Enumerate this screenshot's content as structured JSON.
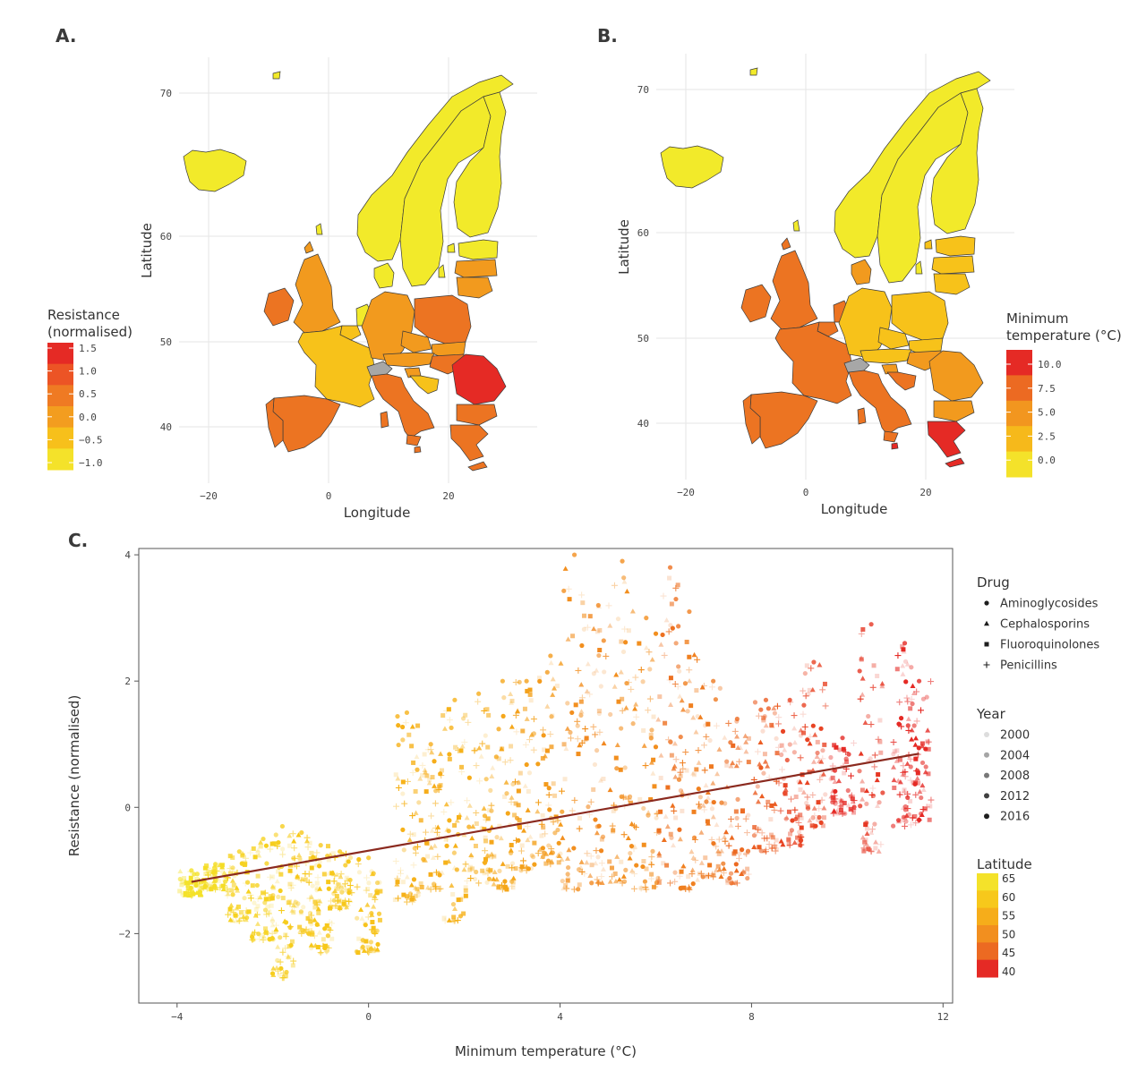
{
  "panel_letters": {
    "a": "A.",
    "b": "B.",
    "c": "C."
  },
  "colors": {
    "yellow": "#f2ea2a",
    "yellow_orange": "#f7c21a",
    "orange": "#f29a1e",
    "dark_orange": "#ec7422",
    "red": "#e52a25",
    "grey": "#a7a7a7",
    "regression_line": "#8b2a1f",
    "grid": "#e6e6e6"
  },
  "chart_data": [
    {
      "type": "heatmap",
      "panel": "A",
      "geography": "Europe choropleth map",
      "xlabel": "Longitude",
      "ylabel": "Latitude",
      "x_ticks": [
        "−20",
        "0",
        "20"
      ],
      "y_ticks": [
        "40",
        "50",
        "60",
        "70"
      ],
      "legend_title": "Resistance (normalised)",
      "legend_title_lines": [
        "Resistance",
        "(normalised)"
      ],
      "legend_ticks": [
        "1.5",
        "1.0",
        "0.5",
        "0.0",
        "−0.5",
        "−1.0"
      ],
      "legend_colors": [
        "#e52a25",
        "#ec5425",
        "#ef7a23",
        "#f39d1f",
        "#f7c01b",
        "#f4e22a"
      ],
      "regions": [
        {
          "region": "Iceland",
          "color": "yellow"
        },
        {
          "region": "Norway",
          "color": "yellow"
        },
        {
          "region": "Sweden",
          "color": "yellow"
        },
        {
          "region": "Finland",
          "color": "yellow"
        },
        {
          "region": "Denmark",
          "color": "yellow"
        },
        {
          "region": "Netherlands",
          "color": "yellow"
        },
        {
          "region": "Estonia",
          "color": "yellow"
        },
        {
          "region": "Latvia",
          "color": "orange"
        },
        {
          "region": "Lithuania",
          "color": "orange"
        },
        {
          "region": "United Kingdom",
          "color": "orange"
        },
        {
          "region": "Ireland",
          "color": "dark_orange"
        },
        {
          "region": "France",
          "color": "yellow_orange"
        },
        {
          "region": "Belgium",
          "color": "yellow_orange"
        },
        {
          "region": "Germany",
          "color": "orange"
        },
        {
          "region": "Poland",
          "color": "dark_orange"
        },
        {
          "region": "Czechia",
          "color": "orange"
        },
        {
          "region": "Slovakia",
          "color": "orange"
        },
        {
          "region": "Austria",
          "color": "orange"
        },
        {
          "region": "Hungary",
          "color": "dark_orange"
        },
        {
          "region": "Slovenia",
          "color": "orange"
        },
        {
          "region": "Croatia",
          "color": "yellow_orange"
        },
        {
          "region": "Switzerland",
          "color": "grey"
        },
        {
          "region": "Italy",
          "color": "dark_orange"
        },
        {
          "region": "Spain",
          "color": "dark_orange"
        },
        {
          "region": "Portugal",
          "color": "dark_orange"
        },
        {
          "region": "Romania",
          "color": "red"
        },
        {
          "region": "Bulgaria",
          "color": "dark_orange"
        },
        {
          "region": "Greece",
          "color": "dark_orange"
        },
        {
          "region": "Cyprus",
          "color": "dark_orange"
        },
        {
          "region": "Malta",
          "color": "dark_orange"
        }
      ]
    },
    {
      "type": "heatmap",
      "panel": "B",
      "geography": "Europe choropleth map",
      "xlabel": "Longitude",
      "ylabel": "Latitude",
      "x_ticks": [
        "−20",
        "0",
        "20"
      ],
      "y_ticks": [
        "40",
        "50",
        "60",
        "70"
      ],
      "legend_title": "Minimum temperature (°C)",
      "legend_title_lines": [
        "Minimum",
        "temperature (°C)"
      ],
      "legend_ticks": [
        "10.0",
        "7.5",
        "5.0",
        "2.5",
        "0.0"
      ],
      "legend_colors": [
        "#e52a25",
        "#ec6a22",
        "#f2961f",
        "#f6b91b",
        "#f4e22a"
      ],
      "regions": [
        {
          "region": "Iceland",
          "color": "yellow"
        },
        {
          "region": "Norway",
          "color": "yellow"
        },
        {
          "region": "Sweden",
          "color": "yellow"
        },
        {
          "region": "Finland",
          "color": "yellow"
        },
        {
          "region": "Estonia",
          "color": "yellow_orange"
        },
        {
          "region": "Latvia",
          "color": "yellow_orange"
        },
        {
          "region": "Lithuania",
          "color": "yellow_orange"
        },
        {
          "region": "Denmark",
          "color": "orange"
        },
        {
          "region": "Netherlands",
          "color": "dark_orange"
        },
        {
          "region": "Belgium",
          "color": "dark_orange"
        },
        {
          "region": "United Kingdom",
          "color": "dark_orange"
        },
        {
          "region": "Ireland",
          "color": "dark_orange"
        },
        {
          "region": "France",
          "color": "dark_orange"
        },
        {
          "region": "Germany",
          "color": "yellow_orange"
        },
        {
          "region": "Poland",
          "color": "yellow_orange"
        },
        {
          "region": "Czechia",
          "color": "yellow_orange"
        },
        {
          "region": "Slovakia",
          "color": "yellow_orange"
        },
        {
          "region": "Austria",
          "color": "yellow_orange"
        },
        {
          "region": "Hungary",
          "color": "orange"
        },
        {
          "region": "Romania",
          "color": "orange"
        },
        {
          "region": "Bulgaria",
          "color": "orange"
        },
        {
          "region": "Slovenia",
          "color": "orange"
        },
        {
          "region": "Croatia",
          "color": "dark_orange"
        },
        {
          "region": "Switzerland",
          "color": "grey"
        },
        {
          "region": "Italy",
          "color": "dark_orange"
        },
        {
          "region": "Spain",
          "color": "dark_orange"
        },
        {
          "region": "Portugal",
          "color": "dark_orange"
        },
        {
          "region": "Greece",
          "color": "red"
        },
        {
          "region": "Cyprus",
          "color": "red"
        },
        {
          "region": "Malta",
          "color": "red"
        }
      ]
    },
    {
      "type": "scatter",
      "panel": "C",
      "xlabel": "Minimum temperature (°C)",
      "ylabel": "Resistance (normalised)",
      "xlim": [
        -4.8,
        12.2
      ],
      "ylim": [
        -3.1,
        4.1
      ],
      "x_ticks": [
        {
          "value": -4,
          "label": "−4"
        },
        {
          "value": 0,
          "label": "0"
        },
        {
          "value": 4,
          "label": "4"
        },
        {
          "value": 8,
          "label": "8"
        },
        {
          "value": 12,
          "label": "12"
        }
      ],
      "y_ticks": [
        {
          "value": -2,
          "label": "−2"
        },
        {
          "value": 0,
          "label": "0"
        },
        {
          "value": 2,
          "label": "2"
        },
        {
          "value": 4,
          "label": "4"
        }
      ],
      "regression_line": {
        "x": [
          -3.7,
          11.5
        ],
        "y": [
          -1.18,
          0.85
        ]
      },
      "note": "Approximately 2,000 points per visual density; columns are countries by minimum temperature.",
      "country_columns": [
        {
          "x": -3.7,
          "latitude": 65,
          "y_range": [
            -1.4,
            -1.0
          ]
        },
        {
          "x": -3.2,
          "latitude": 64,
          "y_range": [
            -1.3,
            -0.9
          ]
        },
        {
          "x": -2.7,
          "latitude": 62,
          "y_range": [
            -1.8,
            -0.7
          ]
        },
        {
          "x": -2.2,
          "latitude": 62,
          "y_range": [
            -2.1,
            -0.5
          ]
        },
        {
          "x": -1.8,
          "latitude": 61,
          "y_range": [
            -2.7,
            -0.3
          ]
        },
        {
          "x": -1.4,
          "latitude": 60,
          "y_range": [
            -2.0,
            -0.4
          ]
        },
        {
          "x": -1.0,
          "latitude": 60,
          "y_range": [
            -2.3,
            -0.6
          ]
        },
        {
          "x": -0.6,
          "latitude": 60,
          "y_range": [
            -1.6,
            -0.7
          ]
        },
        {
          "x": 0.0,
          "latitude": 59,
          "y_range": [
            -2.3,
            -0.8
          ]
        },
        {
          "x": 0.8,
          "latitude": 56,
          "y_range": [
            -1.5,
            1.5
          ]
        },
        {
          "x": 1.3,
          "latitude": 55,
          "y_range": [
            -1.3,
            1.0
          ]
        },
        {
          "x": 1.8,
          "latitude": 56,
          "y_range": [
            -1.8,
            1.7
          ]
        },
        {
          "x": 2.3,
          "latitude": 55,
          "y_range": [
            -1.2,
            1.8
          ]
        },
        {
          "x": 2.8,
          "latitude": 54,
          "y_range": [
            -1.3,
            2.0
          ]
        },
        {
          "x": 3.3,
          "latitude": 53,
          "y_range": [
            -1.0,
            2.0
          ]
        },
        {
          "x": 3.8,
          "latitude": 52,
          "y_range": [
            -0.9,
            2.4
          ]
        },
        {
          "x": 4.3,
          "latitude": 50,
          "y_range": [
            -1.3,
            4.0
          ]
        },
        {
          "x": 4.8,
          "latitude": 49,
          "y_range": [
            -1.2,
            3.2
          ]
        },
        {
          "x": 5.3,
          "latitude": 50,
          "y_range": [
            -1.2,
            3.9
          ]
        },
        {
          "x": 5.8,
          "latitude": 50,
          "y_range": [
            -1.3,
            3.0
          ]
        },
        {
          "x": 6.3,
          "latitude": 46,
          "y_range": [
            -1.2,
            3.8
          ]
        },
        {
          "x": 6.7,
          "latitude": 48,
          "y_range": [
            -1.3,
            3.1
          ]
        },
        {
          "x": 7.2,
          "latitude": 47,
          "y_range": [
            -1.1,
            2.0
          ]
        },
        {
          "x": 7.7,
          "latitude": 45,
          "y_range": [
            -1.2,
            1.4
          ]
        },
        {
          "x": 8.3,
          "latitude": 44,
          "y_range": [
            -0.7,
            1.7
          ]
        },
        {
          "x": 8.8,
          "latitude": 42,
          "y_range": [
            -0.6,
            1.7
          ]
        },
        {
          "x": 9.3,
          "latitude": 42,
          "y_range": [
            -0.3,
            2.3
          ]
        },
        {
          "x": 9.9,
          "latitude": 39,
          "y_range": [
            -0.1,
            1.1
          ]
        },
        {
          "x": 10.5,
          "latitude": 41,
          "y_range": [
            -0.7,
            2.9
          ]
        },
        {
          "x": 11.2,
          "latitude": 40,
          "y_range": [
            -0.3,
            2.6
          ]
        },
        {
          "x": 11.5,
          "latitude": 39,
          "y_range": [
            -0.2,
            2.0
          ]
        }
      ],
      "legends": {
        "drug": {
          "title": "Drug",
          "items": [
            {
              "label": "Aminoglycosides",
              "shape": "circle"
            },
            {
              "label": "Cephalosporins",
              "shape": "triangle"
            },
            {
              "label": "Fluoroquinolones",
              "shape": "square"
            },
            {
              "label": "Penicillins",
              "shape": "plus"
            }
          ]
        },
        "year": {
          "title": "Year",
          "items": [
            {
              "label": "2000",
              "alpha": 0.15
            },
            {
              "label": "2004",
              "alpha": 0.4
            },
            {
              "label": "2008",
              "alpha": 0.6
            },
            {
              "label": "2012",
              "alpha": 0.85
            },
            {
              "label": "2016",
              "alpha": 1.0
            }
          ]
        },
        "latitude": {
          "title": "Latitude",
          "ticks": [
            "65",
            "60",
            "55",
            "50",
            "45",
            "40"
          ],
          "colors": [
            "#f4e22a",
            "#f7c81b",
            "#f6ad1a",
            "#f28f1f",
            "#ec6a22",
            "#e52a25"
          ]
        }
      }
    }
  ]
}
